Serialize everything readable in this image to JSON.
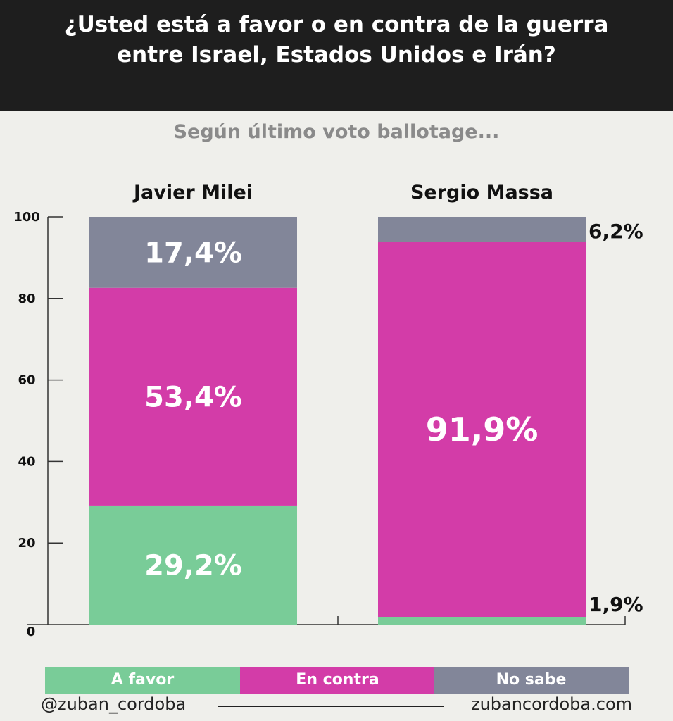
{
  "title_lines": [
    "¿Usted está a favor o en contra de la guerra",
    "entre Israel, Estados Unidos e Irán?"
  ],
  "subtitle": "Según último voto ballotage...",
  "chart_data": {
    "type": "bar",
    "stacked": true,
    "categories": [
      "Javier Milei",
      "Sergio Massa"
    ],
    "series": [
      {
        "name": "A favor",
        "color": "#79cc98",
        "values": [
          29.2,
          1.9
        ],
        "labels": [
          "29,2%",
          "1,9%"
        ]
      },
      {
        "name": "En contra",
        "color": "#d33ca8",
        "values": [
          53.4,
          91.9
        ],
        "labels": [
          "53,4%",
          "91,9%"
        ]
      },
      {
        "name": "No sabe",
        "color": "#828699",
        "values": [
          17.4,
          6.2
        ],
        "labels": [
          "17,4%",
          "6,2%"
        ]
      }
    ],
    "ylim": [
      0,
      100
    ],
    "yticks": [
      0,
      20,
      40,
      60,
      80,
      100
    ],
    "legend": "bottom"
  },
  "footer": {
    "handle": "@zuban_cordoba",
    "site": "zubancordoba.com"
  }
}
